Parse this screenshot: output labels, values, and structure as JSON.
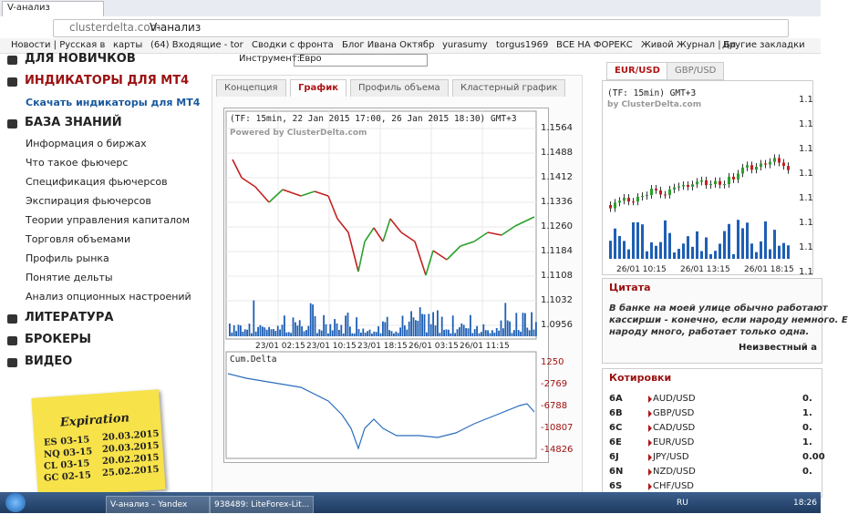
{
  "browser": {
    "tab_title": "V-анализ",
    "url": "clusterdelta.com",
    "page_title": "V-анализ",
    "bookmarks": [
      "Новости | Русская в",
      "карты",
      "(64) Входящие - tor",
      "Сводки с фронта",
      "Блог Ивана Октябр",
      "yurasumy",
      "torgus1969",
      "ВСЕ НА ФОРЕКС",
      "Живой Журнал | Бл"
    ],
    "other_bookmarks": "Другие закладки"
  },
  "sidebar": {
    "items": [
      "ДЛЯ НОВИЧКОВ",
      "ИНДИКАТОРЫ ДЛЯ МТ4",
      "Скачать индикаторы для МТ4",
      "БАЗА ЗНАНИЙ",
      "Информация о биржах",
      "Что такое фьючерс",
      "Спецификация фьючерсов",
      "Экспирация фьючерсов",
      "Теории управления капиталом",
      "Торговля объемами",
      "Профиль рынка",
      "Понятие дельты",
      "Анализ опционных настроений",
      "ЛИТЕРАТУРА",
      "БРОКЕРЫ",
      "ВИДЕО"
    ]
  },
  "sticky": {
    "title": "Expiration",
    "rows": [
      [
        "ES 03-15",
        "20.03.2015"
      ],
      [
        "NQ 03-15",
        "20.03.2015"
      ],
      [
        "CL 03-15",
        "20.02.2015"
      ],
      [
        "GC 02-15",
        "25.02.2015"
      ]
    ]
  },
  "center": {
    "instrument_label": "Инструмент:",
    "instrument": "Евро",
    "tabs": [
      "Концепция",
      "График",
      "Профиль объема",
      "Кластерный график"
    ],
    "chart_header": "(TF: 15min, 22 Jan 2015 17:00, 26 Jan 2015 18:30) GMT+3",
    "powered": "Powered by ClusterDelta.com",
    "price_ticks": [
      "1.1564",
      "1.1488",
      "1.1412",
      "1.1336",
      "1.1260",
      "1.1184",
      "1.1108",
      "1.1032",
      "1.0956"
    ],
    "time_ticks": [
      "23/01 02:15",
      "23/01 10:15",
      "23/01 18:15",
      "26/01 03:15",
      "26/01 11:15"
    ],
    "delta_title": "Cum.Delta",
    "delta_ticks": [
      "1250",
      "-2769",
      "-6788",
      "-10807",
      "-14826"
    ]
  },
  "right": {
    "tabs": [
      "EUR/USD",
      "GBP/USD"
    ],
    "mini_header": "(TF: 15min) GMT+3",
    "mini_powered": "by ClusterDelta.com",
    "mini_price_ticks": [
      "1.1",
      "1.1",
      "1.1",
      "1.1",
      "1.1",
      "1.1",
      "1.1",
      "1.1"
    ],
    "mini_time_ticks": [
      "26/01 10:15",
      "26/01 13:15",
      "26/01 18:15"
    ],
    "quote_title": "Цитата",
    "quote_lines": [
      "В банке на моей улице обычно работают",
      "кассирши - конечно, если народу немного. Е",
      "народу много, работает только одна."
    ],
    "quote_author": "Неизвестный а",
    "quotes_title": "Котировки",
    "quotes": [
      [
        "6A",
        "AUD/USD",
        "0."
      ],
      [
        "6B",
        "GBP/USD",
        "1."
      ],
      [
        "6C",
        "CAD/USD",
        "0."
      ],
      [
        "6E",
        "EUR/USD",
        "1."
      ],
      [
        "6J",
        "JPY/USD",
        "0.00"
      ],
      [
        "6N",
        "NZD/USD",
        "0."
      ],
      [
        "6S",
        "CHF/USD",
        ""
      ]
    ]
  },
  "taskbar": {
    "items": [
      "V-анализ – Yandex",
      "938489: LiteForex-Lit..."
    ],
    "lang": "RU",
    "time": "18:26"
  }
}
